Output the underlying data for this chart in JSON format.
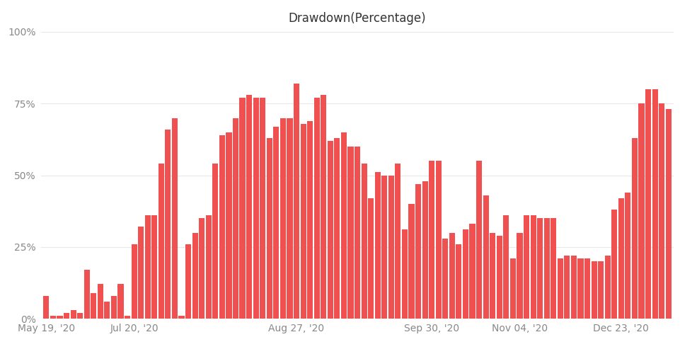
{
  "title": "Drawdown(Percentage)",
  "bar_color": "#f05050",
  "background_color": "#ffffff",
  "grid_color": "#e8e8e8",
  "ylim": [
    0,
    100
  ],
  "yticks": [
    0,
    25,
    50,
    75,
    100
  ],
  "ytick_labels": [
    "0%",
    "25%",
    "50%",
    "75%",
    "100%"
  ],
  "xlabel_dates": [
    "May 19, '20",
    "Jul 20, '20",
    "Aug 27, '20",
    "Sep 30, '20",
    "Nov 04, '20",
    "Dec 23, '20"
  ],
  "values": [
    8,
    1,
    1,
    2,
    3,
    2,
    17,
    9,
    12,
    6,
    8,
    12,
    1,
    26,
    32,
    36,
    36,
    54,
    66,
    70,
    1,
    26,
    30,
    35,
    36,
    54,
    64,
    65,
    70,
    77,
    78,
    77,
    77,
    63,
    67,
    70,
    70,
    82,
    68,
    69,
    77,
    78,
    62,
    63,
    65,
    60,
    60,
    54,
    42,
    51,
    50,
    50,
    54,
    31,
    40,
    47,
    48,
    55,
    55,
    28,
    30,
    26,
    31,
    33,
    55,
    43,
    30,
    29,
    36,
    21,
    30,
    36,
    36,
    35,
    35,
    35,
    21,
    22,
    22,
    21,
    21,
    20,
    20,
    22,
    38,
    42,
    44,
    63,
    75,
    80,
    80,
    75,
    73
  ],
  "title_fontsize": 12,
  "tick_fontsize": 10,
  "date_positions": [
    0,
    13,
    37,
    57,
    70,
    85
  ]
}
